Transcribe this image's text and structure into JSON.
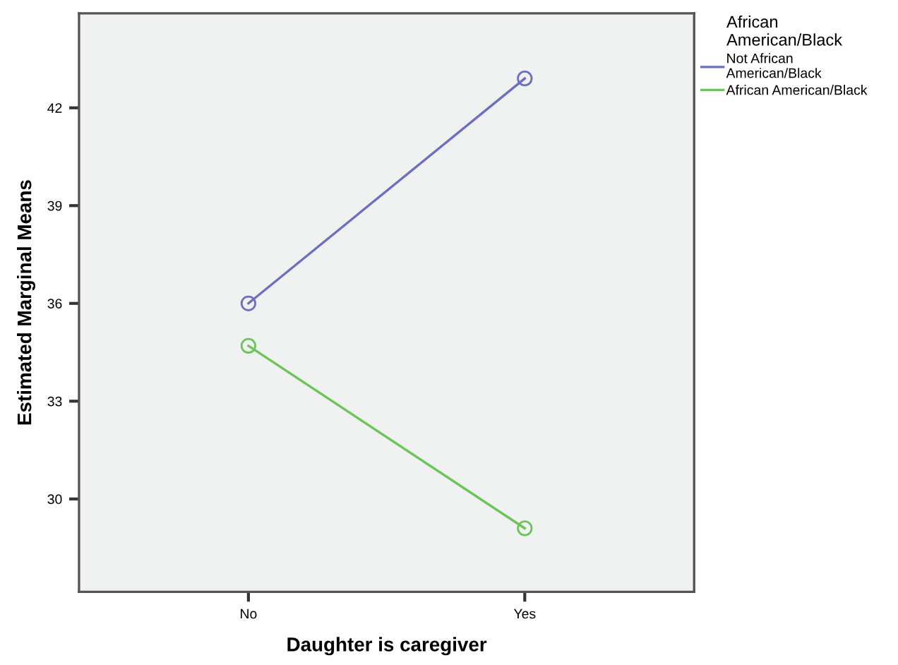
{
  "chart_data": {
    "type": "line",
    "xlabel": "Daughter is caregiver",
    "ylabel": "Estimated Marginal Means",
    "legend_title": "African\nAmerican/Black",
    "categories": [
      "No",
      "Yes"
    ],
    "series": [
      {
        "name": "Not African\nAmerican/Black",
        "color": "#6b6fc4",
        "values": [
          36.0,
          42.9
        ]
      },
      {
        "name": "African American/Black",
        "color": "#6cc45a",
        "values": [
          34.7,
          29.1
        ]
      }
    ],
    "ylim": [
      27.15,
      44.9
    ],
    "yticks": [
      30,
      33,
      36,
      39,
      42
    ],
    "marker": "circle",
    "line_style": "solid",
    "grid": false,
    "legend": "top right"
  }
}
